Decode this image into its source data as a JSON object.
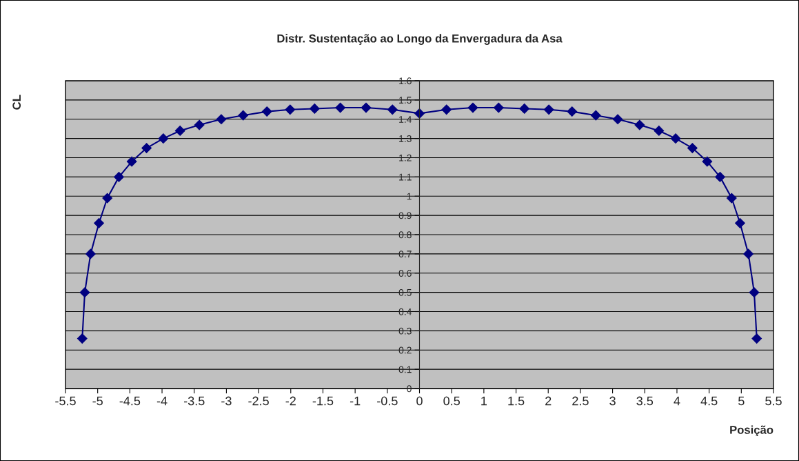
{
  "chart_data": {
    "type": "line",
    "title": "Distr. Sustentação ao Longo da Envergadura da Asa",
    "xlabel": "Posição",
    "ylabel": "CL",
    "x": [
      -5.24,
      -5.2,
      -5.11,
      -4.98,
      -4.85,
      -4.67,
      -4.47,
      -4.24,
      -3.98,
      -3.72,
      -3.42,
      -3.08,
      -2.74,
      -2.37,
      -2.01,
      -1.63,
      -1.23,
      -0.83,
      -0.42,
      0,
      0.42,
      0.83,
      1.23,
      1.63,
      2.01,
      2.37,
      2.74,
      3.08,
      3.42,
      3.72,
      3.98,
      4.24,
      4.47,
      4.67,
      4.85,
      4.98,
      5.11,
      5.2,
      5.24
    ],
    "series": [
      {
        "color": "#000080",
        "values": [
          0.26,
          0.5,
          0.7,
          0.86,
          0.99,
          1.1,
          1.18,
          1.25,
          1.3,
          1.34,
          1.37,
          1.4,
          1.42,
          1.44,
          1.45,
          1.455,
          1.46,
          1.46,
          1.45,
          1.43,
          1.45,
          1.46,
          1.46,
          1.455,
          1.45,
          1.44,
          1.42,
          1.4,
          1.37,
          1.34,
          1.3,
          1.25,
          1.18,
          1.1,
          0.99,
          0.86,
          0.7,
          0.5,
          0.26
        ]
      }
    ],
    "xlim": [
      -5.5,
      5.5
    ],
    "xticks": [
      -5.5,
      -5,
      -4.5,
      -4,
      -3.5,
      -3,
      -2.5,
      -2,
      -1.5,
      -1,
      -0.5,
      0,
      0.5,
      1,
      1.5,
      2,
      2.5,
      3,
      3.5,
      4,
      4.5,
      5,
      5.5
    ],
    "ylim": [
      0,
      1.6
    ],
    "yticks": [
      0,
      0.1,
      0.2,
      0.3,
      0.4,
      0.5,
      0.6,
      0.7,
      0.8,
      0.9,
      1,
      1.1,
      1.2,
      1.3,
      1.4,
      1.5,
      1.6
    ],
    "grid": "y",
    "marker": "diamond",
    "line_style": "solid"
  }
}
